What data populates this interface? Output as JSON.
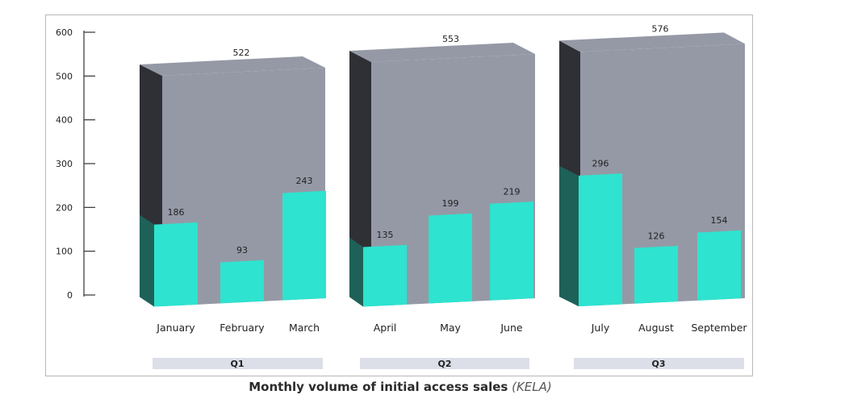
{
  "caption": {
    "text": "Monthly volume of initial access sales",
    "source": "(KELA)"
  },
  "colors": {
    "total_front": "#9599a6",
    "total_top": "#9599a6",
    "total_side": "#2f3035",
    "month_front": "#2ee3cf",
    "month_side": "#1e6158",
    "axis": "#333333",
    "quarter_band": "#dcdfe8"
  },
  "chart_data": {
    "type": "bar",
    "title": "Monthly volume of initial access sales",
    "ylim": [
      0,
      600
    ],
    "yticks": [
      "0",
      "100",
      "200",
      "300",
      "400",
      "500",
      "600"
    ],
    "grid": false,
    "quarters": [
      {
        "label": "Q1",
        "total": 522,
        "months": [
          {
            "name": "January",
            "value": 186
          },
          {
            "name": "February",
            "value": 93
          },
          {
            "name": "March",
            "value": 243
          }
        ]
      },
      {
        "label": "Q2",
        "total": 553,
        "months": [
          {
            "name": "April",
            "value": 135
          },
          {
            "name": "May",
            "value": 199
          },
          {
            "name": "June",
            "value": 219
          }
        ]
      },
      {
        "label": "Q3",
        "total": 576,
        "months": [
          {
            "name": "July",
            "value": 296
          },
          {
            "name": "August",
            "value": 126
          },
          {
            "name": "September",
            "value": 154
          }
        ]
      }
    ]
  }
}
